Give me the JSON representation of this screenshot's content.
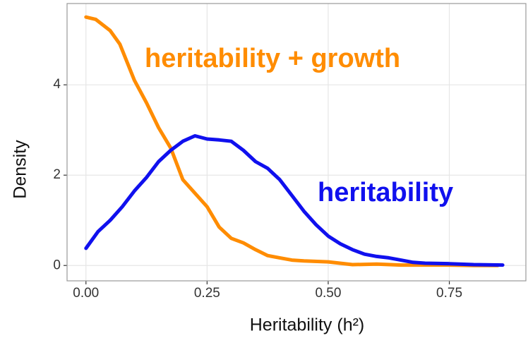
{
  "chart_data": {
    "type": "line",
    "x_label": "Heritability (h²)",
    "y_label": "Density",
    "xlim": [
      -0.039,
      0.908
    ],
    "ylim": [
      -0.34,
      5.8
    ],
    "xticks": [
      {
        "value": 0,
        "label": "0.00"
      },
      {
        "value": 0.25,
        "label": "0.25"
      },
      {
        "value": 0.5,
        "label": "0.50"
      },
      {
        "value": 0.75,
        "label": "0.75"
      }
    ],
    "yticks": [
      0,
      2,
      4
    ],
    "grid": true,
    "series": [
      {
        "name": "heritability + growth",
        "color": "#ff8c00",
        "x": [
          0,
          0.02,
          0.05,
          0.07,
          0.1,
          0.125,
          0.15,
          0.175,
          0.2,
          0.225,
          0.25,
          0.275,
          0.3,
          0.325,
          0.35,
          0.375,
          0.4,
          0.425,
          0.45,
          0.5,
          0.55,
          0.6,
          0.65,
          0.7,
          0.75,
          0.8,
          0.85
        ],
        "values": [
          5.5,
          5.45,
          5.2,
          4.9,
          4.1,
          3.6,
          3.05,
          2.6,
          1.9,
          1.6,
          1.3,
          0.85,
          0.6,
          0.5,
          0.35,
          0.22,
          0.17,
          0.12,
          0.1,
          0.08,
          0.02,
          0.03,
          0.01,
          0.01,
          0.01,
          0,
          0
        ]
      },
      {
        "name": "heritability",
        "color": "#1010ee",
        "x": [
          0,
          0.025,
          0.05,
          0.075,
          0.1,
          0.125,
          0.15,
          0.175,
          0.2,
          0.225,
          0.25,
          0.275,
          0.3,
          0.325,
          0.35,
          0.375,
          0.4,
          0.425,
          0.45,
          0.475,
          0.5,
          0.525,
          0.55,
          0.575,
          0.6,
          0.625,
          0.65,
          0.675,
          0.7,
          0.75,
          0.8,
          0.86
        ],
        "values": [
          0.38,
          0.75,
          1.0,
          1.3,
          1.65,
          1.95,
          2.3,
          2.55,
          2.75,
          2.87,
          2.8,
          2.78,
          2.75,
          2.55,
          2.3,
          2.15,
          1.9,
          1.55,
          1.2,
          0.9,
          0.65,
          0.48,
          0.35,
          0.25,
          0.2,
          0.17,
          0.12,
          0.07,
          0.05,
          0.04,
          0.02,
          0.01
        ]
      }
    ]
  }
}
